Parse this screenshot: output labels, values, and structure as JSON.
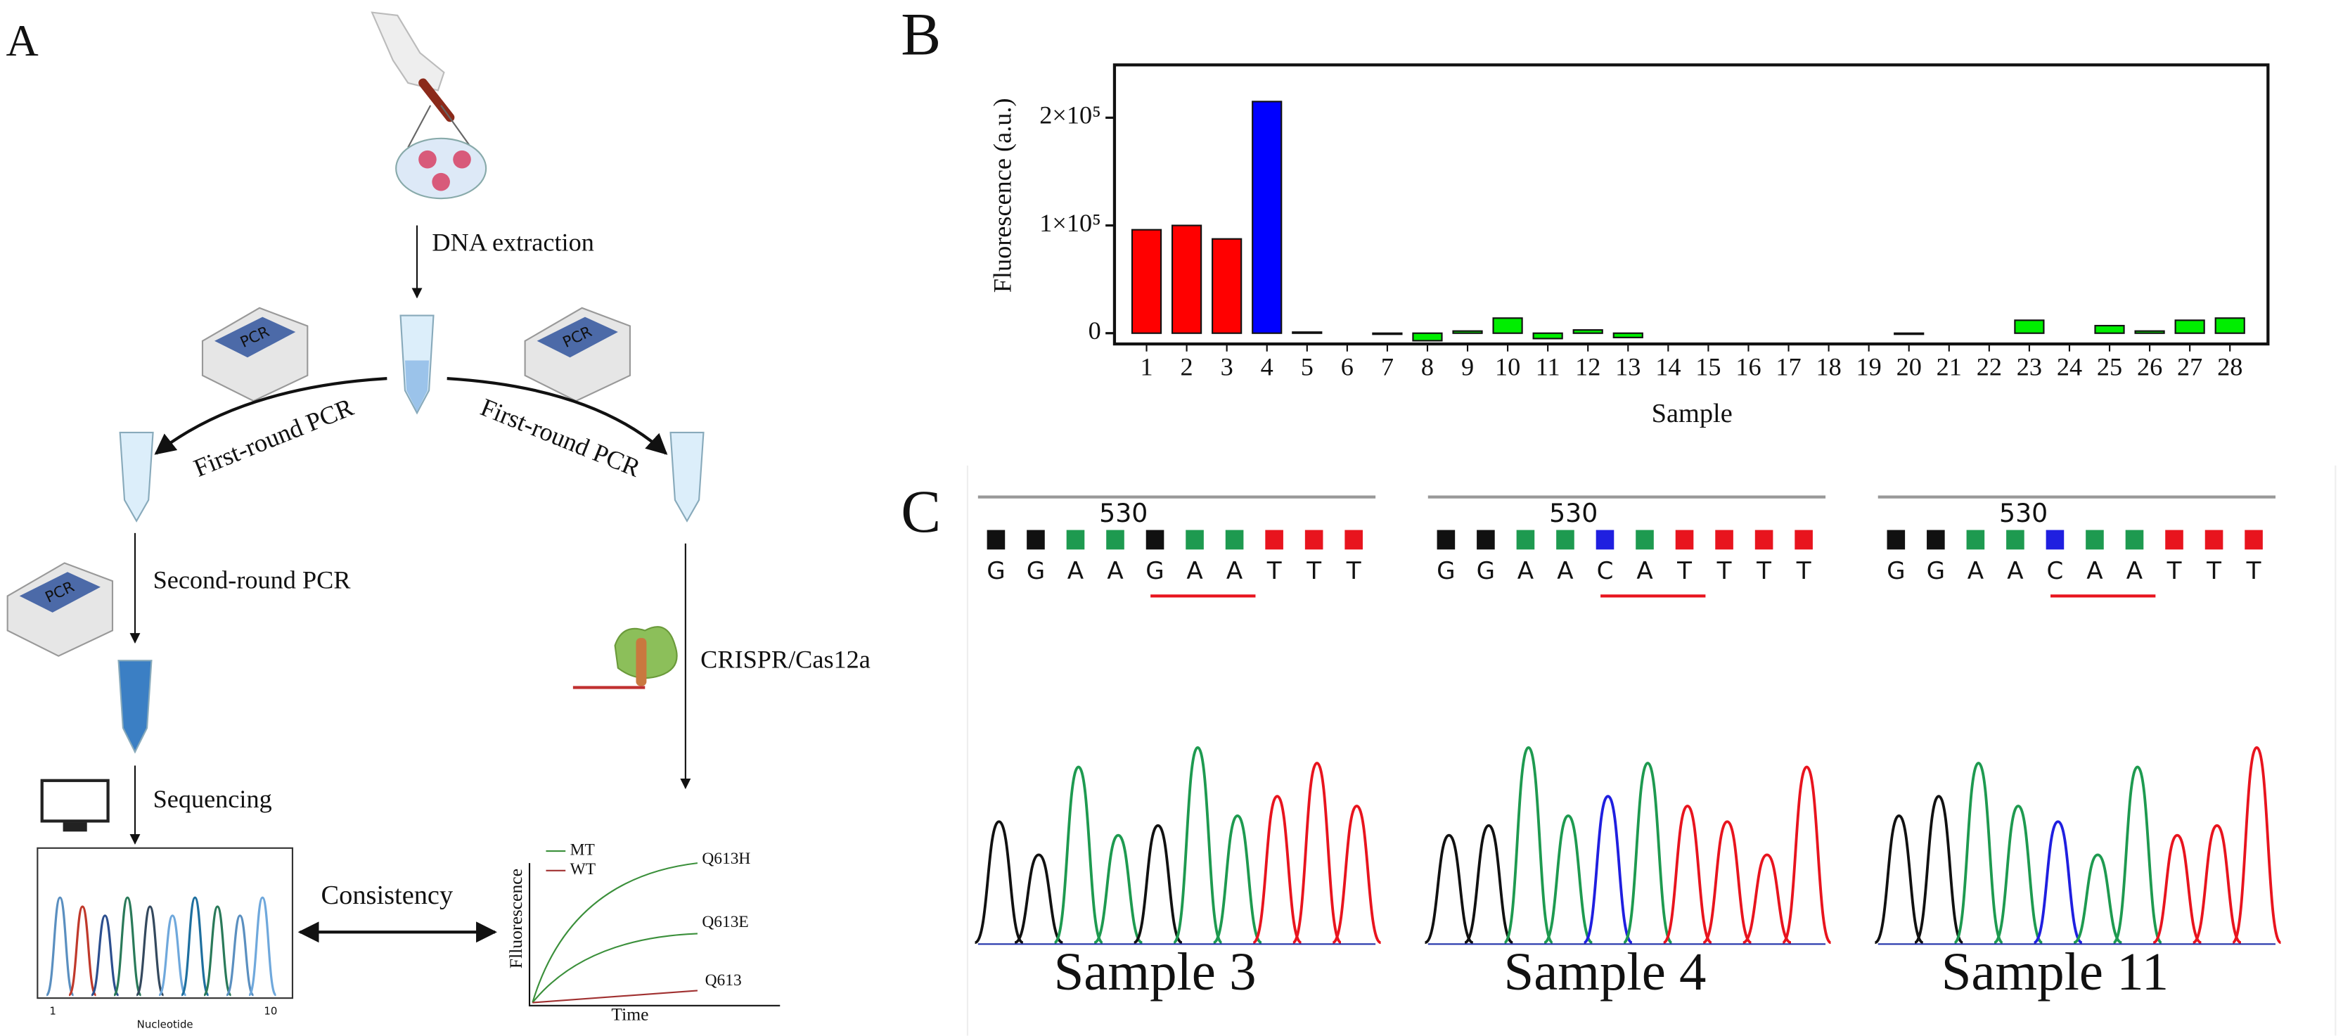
{
  "panel_a": {
    "label": "A",
    "steps": {
      "extraction": "DNA extraction",
      "first_round_left": "First-round PCR",
      "first_round_right": "First-round PCR",
      "second_round": "Second-round PCR",
      "crispr": "CRISPR/Cas12a",
      "sequencing": "Sequencing",
      "consistency": "Consistency"
    },
    "machines": [
      "PCR",
      "PCR",
      "PCR"
    ],
    "sequencing_plot": {
      "x_label": "Nucleotide",
      "x_ticks": [
        "1",
        "10"
      ]
    },
    "kinetics_plot": {
      "y_label": "Flluorescence",
      "x_label": "Time",
      "legend": [
        "MT",
        "WT"
      ],
      "curves": [
        "Q613H",
        "Q613E",
        "Q613"
      ]
    }
  },
  "chart_data": {
    "type": "bar",
    "panel_label": "B",
    "x_label": "Sample",
    "y_label": "Fluorescence (a.u.)",
    "categories": [
      "1",
      "2",
      "3",
      "4",
      "5",
      "6",
      "7",
      "8",
      "9",
      "10",
      "11",
      "12",
      "13",
      "14",
      "15",
      "16",
      "17",
      "18",
      "19",
      "20",
      "21",
      "22",
      "23",
      "24",
      "25",
      "26",
      "27",
      "28"
    ],
    "values": [
      96000,
      100000,
      87500,
      215000,
      1000,
      0,
      -1000,
      -7000,
      2000,
      14000,
      -5000,
      3000,
      -4000,
      0,
      0,
      0,
      0,
      0,
      0,
      -1000,
      0,
      0,
      12000,
      0,
      7000,
      2000,
      12000,
      14000
    ],
    "colors": [
      "#ff0000",
      "#ff0000",
      "#ff0000",
      "#0000ff",
      "#00ee00",
      "#00ee00",
      "#00ee00",
      "#00ee00",
      "#00ee00",
      "#00ee00",
      "#00ee00",
      "#00ee00",
      "#00ee00",
      "#00ee00",
      "#00ee00",
      "#00ee00",
      "#00ee00",
      "#00ee00",
      "#00ee00",
      "#00ee00",
      "#00ee00",
      "#00ee00",
      "#00ee00",
      "#00ee00",
      "#00ee00",
      "#00ee00",
      "#00ee00",
      "#00ee00"
    ],
    "ylim": [
      -10000,
      249000
    ],
    "yticks": [
      0,
      {
        "value": 100000,
        "label": "1×10⁵"
      },
      {
        "value": 200000,
        "label": "2×10⁵"
      }
    ],
    "grid": false
  },
  "panel_c": {
    "label": "C",
    "base_colors": {
      "G": "#111111",
      "A": "#1e9a50",
      "C": "#1f1fe0",
      "T": "#e8141e"
    },
    "samples": [
      {
        "position": "530",
        "bases": [
          "G",
          "G",
          "A",
          "A",
          "G",
          "A",
          "A",
          "T",
          "T",
          "T"
        ],
        "name": "Sample 3"
      },
      {
        "position": "530",
        "bases": [
          "G",
          "G",
          "A",
          "A",
          "C",
          "A",
          "T",
          "T",
          "T",
          "T"
        ],
        "name": "Sample 4"
      },
      {
        "position": "530",
        "bases": [
          "G",
          "G",
          "A",
          "A",
          "C",
          "A",
          "A",
          "T",
          "T",
          "T"
        ],
        "name": "Sample 11"
      }
    ]
  }
}
